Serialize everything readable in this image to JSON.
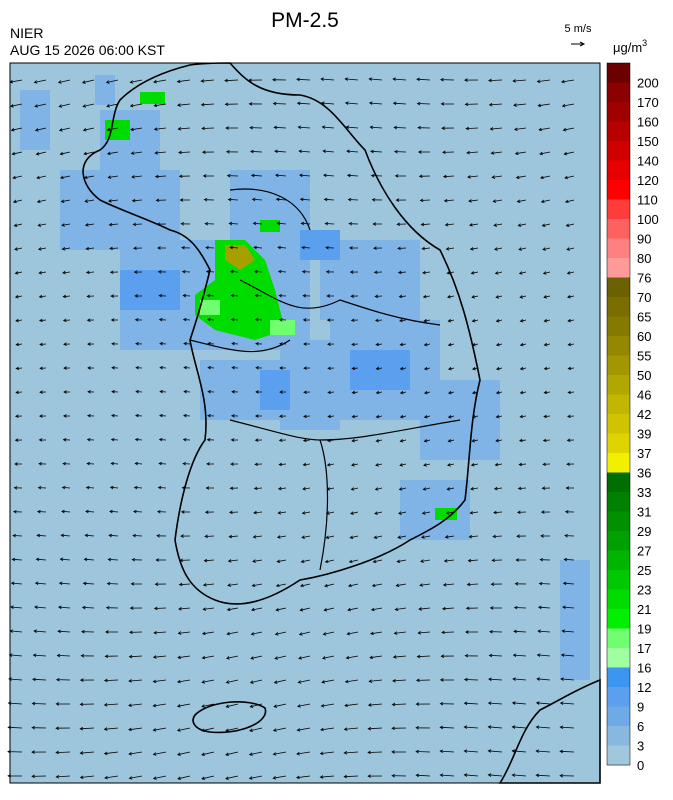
{
  "header": {
    "title": "PM-2.5",
    "source": "NIER",
    "datetime": "AUG 15 2026 06:00 KST",
    "wind_scale": "5 m/s"
  },
  "colorbar": {
    "unit": {
      "base": "μg/m",
      "sup": "3"
    },
    "labels": [
      200,
      170,
      160,
      150,
      140,
      120,
      110,
      100,
      90,
      80,
      76,
      70,
      65,
      60,
      55,
      50,
      46,
      42,
      39,
      37,
      36,
      33,
      31,
      29,
      27,
      25,
      23,
      21,
      19,
      17,
      16,
      12,
      9,
      6,
      3,
      0
    ],
    "colors": [
      "#6b0000",
      "#8b0000",
      "#a00000",
      "#b80000",
      "#d00000",
      "#e80000",
      "#ff0000",
      "#ff3c3c",
      "#ff6060",
      "#ff8080",
      "#ff9a9a",
      "#6b6100",
      "#7a6e00",
      "#857a00",
      "#948800",
      "#a39700",
      "#b2a600",
      "#c2b600",
      "#d0c400",
      "#e0d400",
      "#f0f000",
      "#006e00",
      "#008000",
      "#009000",
      "#00a000",
      "#00b400",
      "#00c800",
      "#00dc00",
      "#00f000",
      "#70ff70",
      "#a0ffa0",
      "#3c96f0",
      "#5aa0ee",
      "#6eaae6",
      "#88b8e0",
      "#a0c8dc"
    ]
  }
}
